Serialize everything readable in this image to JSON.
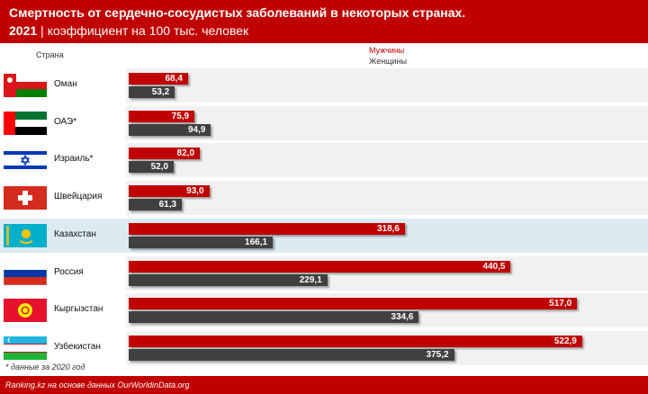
{
  "header": {
    "title": "Смертность от сердечно-сосудистых заболеваний в некоторых странах.",
    "year": "2021",
    "separator": "|",
    "subtitle": "коэффициент на 100 тыс. человек"
  },
  "column_label": "Страна",
  "footnote": "* данные за 2020 год",
  "footer": "Ranking.kz на основе данных OurWorldinData.org",
  "colors": {
    "men": "#c00000",
    "women": "#404040",
    "highlight": "#dcebf1",
    "header": "#c00000"
  },
  "chart_data": {
    "type": "bar",
    "orientation": "horizontal",
    "categories": [
      "Оман",
      "ОАЭ*",
      "Израиль*",
      "Швейцария",
      "Казахстан",
      "Россия",
      "Кыргызстан",
      "Узбекистан"
    ],
    "flags": [
      "oman-flag",
      "uae-flag",
      "israel-flag",
      "switzerland-flag",
      "kazakhstan-flag",
      "russia-flag",
      "kyrgyzstan-flag",
      "uzbekistan-flag"
    ],
    "highlight_index": 4,
    "series": [
      {
        "name": "Мужчины",
        "values": [
          68.4,
          75.9,
          82.0,
          93.0,
          318.6,
          440.5,
          517.0,
          522.9
        ],
        "labels": [
          "68,4",
          "75,9",
          "82,0",
          "93,0",
          "318,6",
          "440,5",
          "517,0",
          "522,9"
        ]
      },
      {
        "name": "Женщины",
        "values": [
          53.2,
          94.9,
          52.0,
          61.3,
          166.1,
          229.1,
          334.6,
          375.2
        ],
        "labels": [
          "53,2",
          "94,9",
          "52,0",
          "61,3",
          "166,1",
          "229,1",
          "334,6",
          "375,2"
        ]
      }
    ],
    "legend": "top-center"
  }
}
